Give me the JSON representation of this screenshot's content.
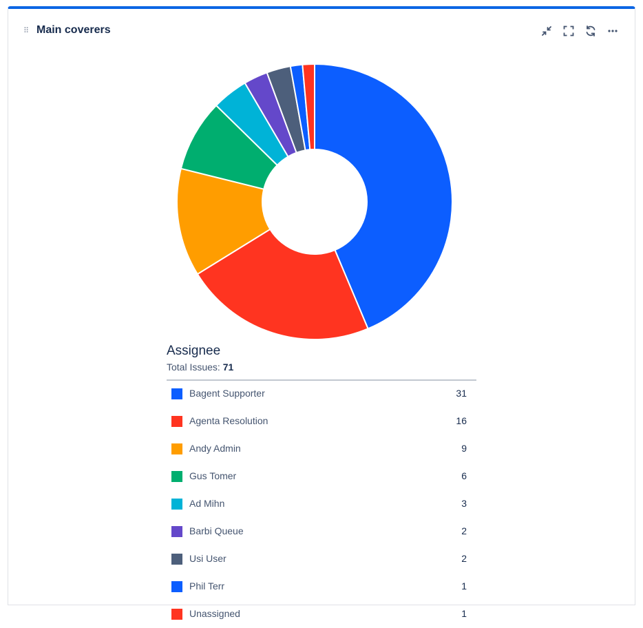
{
  "gadget": {
    "title": "Main coverers",
    "actions": [
      {
        "name": "minimize-button",
        "icon": "collapse-arrows-icon"
      },
      {
        "name": "fullscreen-button",
        "icon": "fullscreen-icon"
      },
      {
        "name": "refresh-button",
        "icon": "refresh-icon"
      },
      {
        "name": "more-button",
        "icon": "more-dots-icon"
      }
    ]
  },
  "chart_data": {
    "type": "pie",
    "donut": true,
    "title": "Assignee",
    "total_label": "Total Issues:",
    "total": "71",
    "categories": [
      "Bagent Supporter",
      "Agenta Resolution",
      "Andy Admin",
      "Gus Tomer",
      "Ad Mihn",
      "Barbi Queue",
      "Usi User",
      "Phil Terr",
      "Unassigned"
    ],
    "values": [
      31,
      16,
      9,
      6,
      3,
      2,
      2,
      1,
      1
    ],
    "colors": [
      "#0c5eff",
      "#ff3420",
      "#ff9d00",
      "#00ae6f",
      "#00b3d7",
      "#6448ca",
      "#4d5f7b",
      "#0c5eff",
      "#ff3420"
    ]
  }
}
